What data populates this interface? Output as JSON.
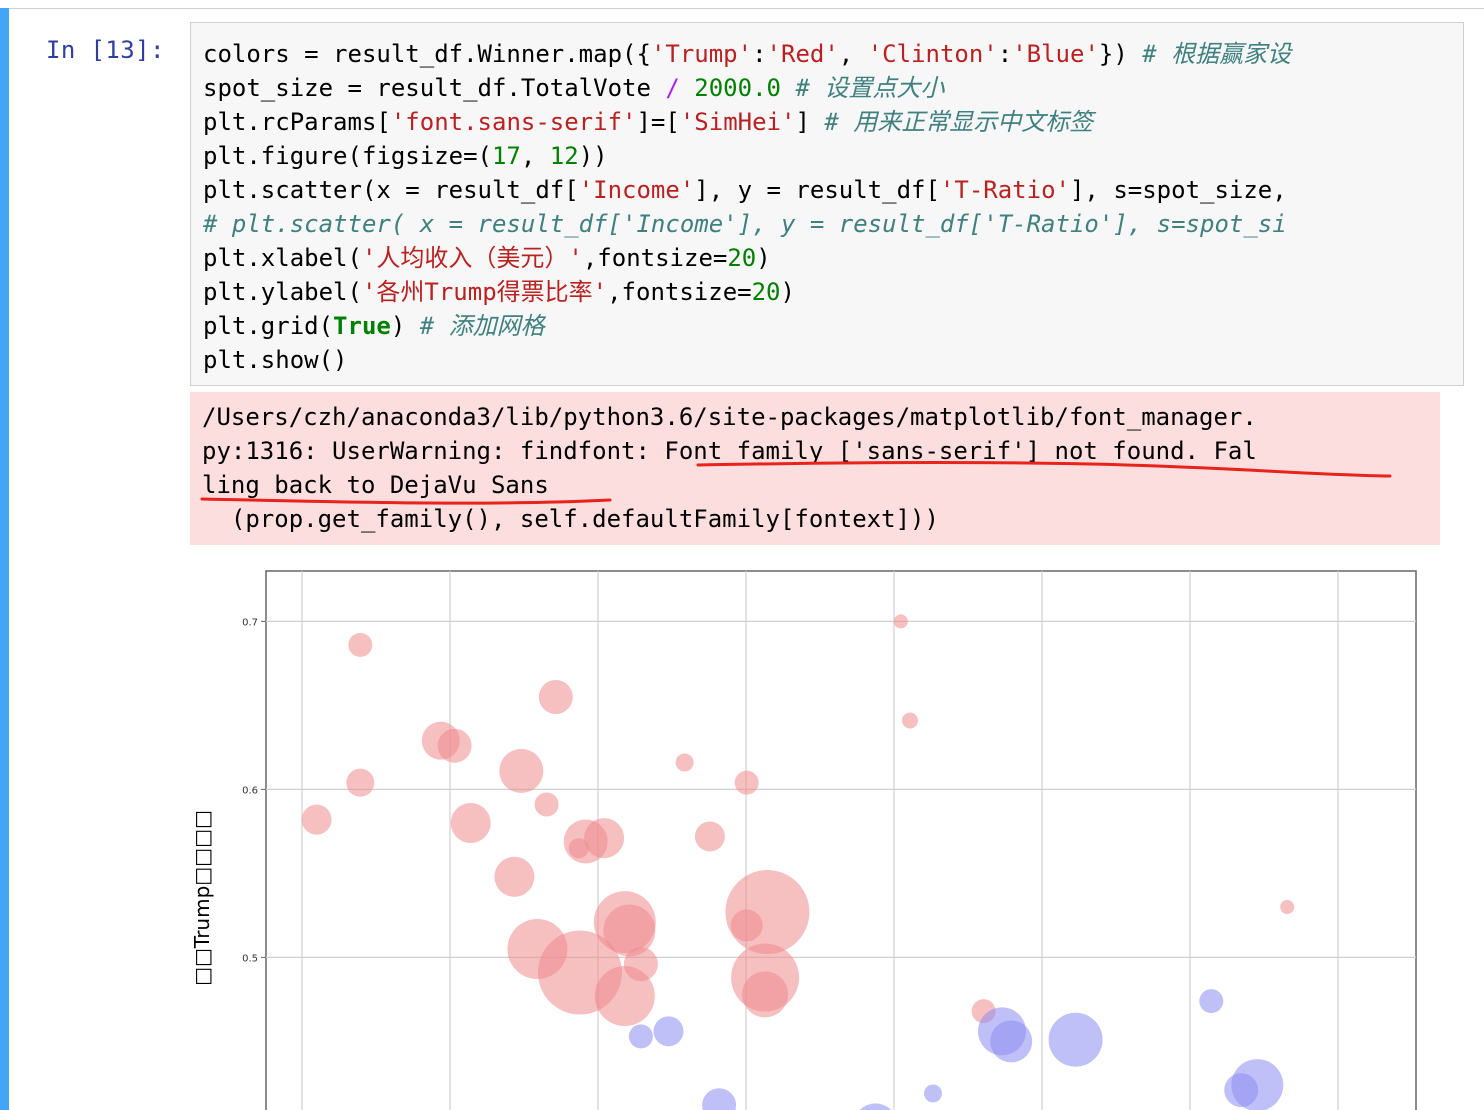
{
  "prompt": "In [13]:",
  "code_lines": [
    [
      [
        "colors = result_df.Winner.map({",
        ""
      ],
      [
        "'Trump'",
        "s"
      ],
      [
        ":",
        ""
      ],
      [
        "'Red'",
        "s"
      ],
      [
        ", ",
        ""
      ],
      [
        "'Clinton'",
        "s"
      ],
      [
        ":",
        ""
      ],
      [
        "'Blue'",
        "s"
      ],
      [
        "}) ",
        ""
      ],
      [
        "# 根据赢家设",
        "c"
      ]
    ],
    [
      [
        "spot_size = result_df.TotalVote ",
        ""
      ],
      [
        "/",
        "o"
      ],
      [
        " ",
        ""
      ],
      [
        "2000.0",
        "n"
      ],
      [
        " ",
        ""
      ],
      [
        "# 设置点大小",
        "c"
      ]
    ],
    [
      [
        "plt.rcParams[",
        ""
      ],
      [
        "'font.sans-serif'",
        "s"
      ],
      [
        "]=[",
        ""
      ],
      [
        "'SimHei'",
        "s"
      ],
      [
        "] ",
        ""
      ],
      [
        "# 用来正常显示中文标签",
        "c"
      ]
    ],
    [
      [
        "plt.figure(figsize=(",
        ""
      ],
      [
        "17",
        "n"
      ],
      [
        ", ",
        ""
      ],
      [
        "12",
        "n"
      ],
      [
        "))",
        ""
      ]
    ],
    [
      [
        "plt.scatter(x = result_df[",
        ""
      ],
      [
        "'Income'",
        "s"
      ],
      [
        "], y = result_df[",
        ""
      ],
      [
        "'T-Ratio'",
        "s"
      ],
      [
        "], s=spot_size,",
        ""
      ]
    ],
    [
      [
        "# plt.scatter( x = result_df['Income'], y = result_df['T-Ratio'], s=spot_si",
        "c"
      ]
    ],
    [
      [
        "plt.xlabel(",
        ""
      ],
      [
        "'人均收入（美元）'",
        "s"
      ],
      [
        ",fontsize=",
        ""
      ],
      [
        "20",
        "n"
      ],
      [
        ")",
        ""
      ]
    ],
    [
      [
        "plt.ylabel(",
        ""
      ],
      [
        "'各州Trump得票比率'",
        "s"
      ],
      [
        ",fontsize=",
        ""
      ],
      [
        "20",
        "n"
      ],
      [
        ")",
        ""
      ]
    ],
    [
      [
        "plt.grid(",
        ""
      ],
      [
        "True",
        "kw"
      ],
      [
        ") ",
        ""
      ],
      [
        "# 添加网格",
        "c"
      ]
    ],
    [
      [
        "plt.show()",
        ""
      ]
    ]
  ],
  "stderr_lines": [
    "/Users/czh/anaconda3/lib/python3.6/site-packages/matplotlib/font_manager.",
    "py:1316: UserWarning: findfont: Font family ['sans-serif'] not found. Fal",
    "ling back to DejaVu Sans",
    "  (prop.get_family(), self.defaultFamily[fontext]))"
  ],
  "annotation_color": "#e8231b",
  "chart_data": {
    "type": "scatter",
    "ylabel": "□□Trump□□□□",
    "xlabel": "",
    "yticks": [
      "0.7",
      "0.6",
      "0.5"
    ],
    "ylim_visible": [
      0.406,
      0.73
    ],
    "grid": true,
    "series": [
      {
        "color": "#ef8a8c",
        "points": [
          {
            "x": 0.082,
            "y": 0.686,
            "s": 12
          },
          {
            "x": 0.252,
            "y": 0.655,
            "s": 17
          },
          {
            "x": 0.152,
            "y": 0.629,
            "s": 19
          },
          {
            "x": 0.164,
            "y": 0.626,
            "s": 17
          },
          {
            "x": 0.082,
            "y": 0.604,
            "s": 14
          },
          {
            "x": 0.222,
            "y": 0.611,
            "s": 22
          },
          {
            "x": 0.044,
            "y": 0.582,
            "s": 15
          },
          {
            "x": 0.178,
            "y": 0.58,
            "s": 20
          },
          {
            "x": 0.244,
            "y": 0.591,
            "s": 12
          },
          {
            "x": 0.278,
            "y": 0.569,
            "s": 22
          },
          {
            "x": 0.294,
            "y": 0.571,
            "s": 20
          },
          {
            "x": 0.272,
            "y": 0.565,
            "s": 10
          },
          {
            "x": 0.364,
            "y": 0.616,
            "s": 9
          },
          {
            "x": 0.418,
            "y": 0.604,
            "s": 12
          },
          {
            "x": 0.386,
            "y": 0.572,
            "s": 15
          },
          {
            "x": 0.216,
            "y": 0.548,
            "s": 20
          },
          {
            "x": 0.236,
            "y": 0.505,
            "s": 30
          },
          {
            "x": 0.273,
            "y": 0.491,
            "s": 42
          },
          {
            "x": 0.312,
            "y": 0.521,
            "s": 31
          },
          {
            "x": 0.316,
            "y": 0.516,
            "s": 26
          },
          {
            "x": 0.312,
            "y": 0.477,
            "s": 30
          },
          {
            "x": 0.326,
            "y": 0.496,
            "s": 17
          },
          {
            "x": 0.436,
            "y": 0.527,
            "s": 42
          },
          {
            "x": 0.418,
            "y": 0.519,
            "s": 16
          },
          {
            "x": 0.434,
            "y": 0.488,
            "s": 34
          },
          {
            "x": 0.434,
            "y": 0.478,
            "s": 23
          },
          {
            "x": 0.552,
            "y": 0.7,
            "s": 7
          },
          {
            "x": 0.56,
            "y": 0.641,
            "s": 8
          },
          {
            "x": 0.624,
            "y": 0.468,
            "s": 12
          },
          {
            "x": 0.888,
            "y": 0.53,
            "s": 7
          }
        ]
      },
      {
        "color": "#8d8df2",
        "points": [
          {
            "x": 0.326,
            "y": 0.453,
            "s": 12
          },
          {
            "x": 0.35,
            "y": 0.456,
            "s": 15
          },
          {
            "x": 0.64,
            "y": 0.456,
            "s": 24
          },
          {
            "x": 0.648,
            "y": 0.45,
            "s": 21
          },
          {
            "x": 0.704,
            "y": 0.451,
            "s": 27
          },
          {
            "x": 0.822,
            "y": 0.474,
            "s": 12
          },
          {
            "x": 0.394,
            "y": 0.412,
            "s": 17
          },
          {
            "x": 0.58,
            "y": 0.419,
            "s": 9
          },
          {
            "x": 0.848,
            "y": 0.421,
            "s": 17
          },
          {
            "x": 0.862,
            "y": 0.424,
            "s": 26
          },
          {
            "x": 0.53,
            "y": 0.4,
            "s": 22
          }
        ]
      }
    ]
  }
}
